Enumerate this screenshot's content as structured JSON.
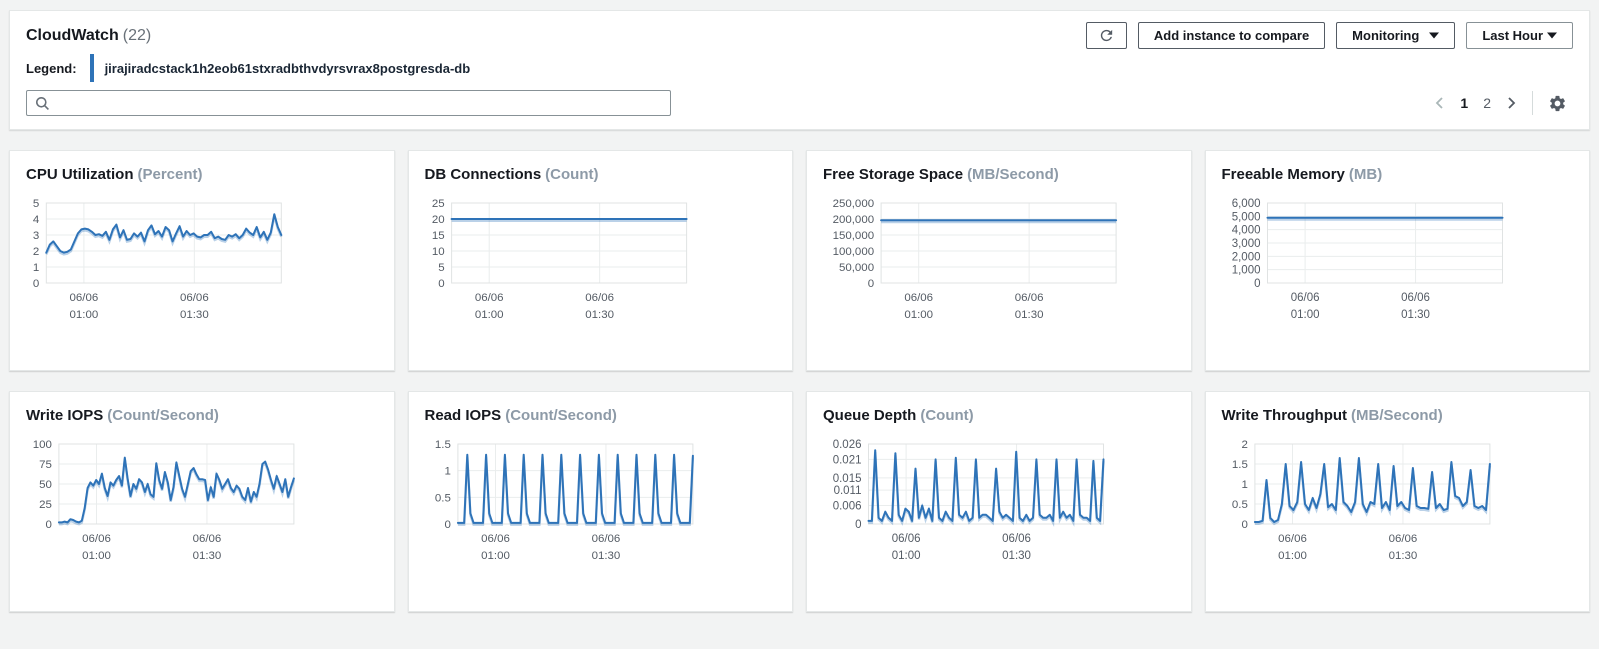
{
  "header": {
    "title": "CloudWatch",
    "count": "(22)",
    "legend_label": "Legend:",
    "legend_value": "jirajiradcstack1h2eob61stxradbthvdyrsvrax8postgresda-db",
    "search": {
      "value": "",
      "placeholder": ""
    },
    "buttons": {
      "refresh_icon": "refresh-icon",
      "add_instance": "Add instance to compare",
      "monitoring": "Monitoring",
      "time_range": "Last Hour"
    },
    "pagination": {
      "pages": [
        "1",
        "2"
      ],
      "current": "1"
    }
  },
  "colors": {
    "line_blue": "#2e73b8",
    "page_bg": "#f2f3f3",
    "grid_line": "#eaeded",
    "plot_border": "#e0e3e3",
    "axis_text": "#545b64",
    "icon_gray": "#545b64"
  },
  "chart_data": [
    {
      "type": "line",
      "title": "CPU Utilization",
      "unit": "(Percent)",
      "ylim": [
        0,
        5
      ],
      "ytick_values": [
        0,
        1,
        2,
        3,
        4,
        5
      ],
      "ytick_labels": [
        "0",
        "1",
        "2",
        "3",
        "4",
        "5"
      ],
      "x_labels": [
        {
          "pos": 0.16,
          "lines": [
            "06/06",
            "01:00"
          ]
        },
        {
          "pos": 0.63,
          "lines": [
            "06/06",
            "01:30"
          ]
        }
      ],
      "values": [
        1.9,
        2.4,
        2.6,
        2.3,
        2.0,
        1.9,
        1.95,
        2.1,
        2.6,
        3.1,
        3.35,
        3.4,
        3.35,
        3.2,
        3.0,
        3.05,
        2.95,
        3.2,
        2.7,
        3.35,
        3.65,
        2.85,
        3.3,
        2.7,
        2.75,
        3.1,
        2.9,
        3.15,
        2.6,
        3.3,
        3.6,
        3.05,
        3.25,
        2.9,
        3.5,
        3.3,
        2.6,
        3.1,
        3.55,
        2.9,
        3.25,
        3.0,
        3.1,
        2.9,
        2.85,
        3.0,
        3.0,
        3.2,
        2.8,
        2.9,
        2.75,
        2.7,
        3.0,
        2.9,
        3.05,
        2.8,
        3.0,
        3.4,
        3.15,
        3.0,
        3.5,
        2.85,
        3.2,
        2.7,
        3.15,
        4.3,
        3.5,
        3.0
      ]
    },
    {
      "type": "line",
      "title": "DB Connections",
      "unit": "(Count)",
      "ylim": [
        0,
        25
      ],
      "ytick_values": [
        0,
        5,
        10,
        15,
        20,
        25
      ],
      "ytick_labels": [
        "0",
        "5",
        "10",
        "15",
        "20",
        "25"
      ],
      "x_labels": [
        {
          "pos": 0.16,
          "lines": [
            "06/06",
            "01:00"
          ]
        },
        {
          "pos": 0.63,
          "lines": [
            "06/06",
            "01:30"
          ]
        }
      ],
      "values": [
        20,
        20,
        20,
        20,
        20,
        20,
        20,
        20,
        20,
        20,
        20,
        20,
        20,
        20,
        20,
        20,
        20,
        20,
        20,
        20,
        20,
        20,
        20,
        20,
        20
      ]
    },
    {
      "type": "line",
      "title": "Free Storage Space",
      "unit": "(MB/Second)",
      "ylim": [
        0,
        250000
      ],
      "ytick_values": [
        0,
        50000,
        100000,
        150000,
        200000,
        250000
      ],
      "ytick_labels": [
        "0",
        "50,000",
        "100,000",
        "150,000",
        "200,000",
        "250,000"
      ],
      "x_labels": [
        {
          "pos": 0.16,
          "lines": [
            "06/06",
            "01:00"
          ]
        },
        {
          "pos": 0.63,
          "lines": [
            "06/06",
            "01:30"
          ]
        }
      ],
      "values": [
        196000,
        196000,
        196000,
        196000,
        196000,
        196000,
        196000,
        196000,
        196000,
        196000,
        196000,
        196000,
        196000,
        196000,
        196000,
        196000,
        196000,
        196000,
        196000,
        196000,
        196000,
        196000,
        196000,
        196000,
        196000
      ]
    },
    {
      "type": "line",
      "title": "Freeable Memory",
      "unit": "(MB)",
      "ylim": [
        0,
        6000
      ],
      "ytick_values": [
        0,
        1000,
        2000,
        3000,
        4000,
        5000,
        6000
      ],
      "ytick_labels": [
        "0",
        "1,000",
        "2,000",
        "3,000",
        "4,000",
        "5,000",
        "6,000"
      ],
      "x_labels": [
        {
          "pos": 0.16,
          "lines": [
            "06/06",
            "01:00"
          ]
        },
        {
          "pos": 0.63,
          "lines": [
            "06/06",
            "01:30"
          ]
        }
      ],
      "values": [
        4890,
        4890,
        4890,
        4890,
        4890,
        4890,
        4890,
        4890,
        4890,
        4890,
        4890,
        4890,
        4890,
        4890,
        4890,
        4890,
        4890,
        4890,
        4890,
        4890,
        4890,
        4890,
        4890,
        4890,
        4890
      ]
    },
    {
      "type": "line",
      "title": "Write IOPS",
      "unit": "(Count/Second)",
      "ylim": [
        0,
        100
      ],
      "ytick_values": [
        0,
        25,
        50,
        75,
        100
      ],
      "ytick_labels": [
        "0",
        "25",
        "50",
        "75",
        "100"
      ],
      "x_labels": [
        {
          "pos": 0.16,
          "lines": [
            "06/06",
            "01:00"
          ]
        },
        {
          "pos": 0.63,
          "lines": [
            "06/06",
            "01:30"
          ]
        }
      ],
      "values": [
        2,
        2,
        3,
        2,
        6,
        5,
        3,
        2,
        4,
        20,
        45,
        52,
        48,
        55,
        50,
        63,
        45,
        35,
        52,
        48,
        55,
        60,
        48,
        83,
        56,
        35,
        50,
        44,
        56,
        52,
        40,
        50,
        37,
        34,
        76,
        55,
        44,
        65,
        52,
        30,
        46,
        77,
        60,
        44,
        34,
        50,
        66,
        70,
        62,
        56,
        56,
        55,
        30,
        46,
        34,
        63,
        55,
        44,
        50,
        56,
        45,
        40,
        48,
        44,
        34,
        30,
        45,
        28,
        40,
        34,
        50,
        75,
        78,
        68,
        55,
        44,
        60,
        50,
        40,
        56,
        34,
        46,
        57
      ]
    },
    {
      "type": "line",
      "title": "Read IOPS",
      "unit": "(Count/Second)",
      "ylim": [
        0,
        1.5
      ],
      "ytick_values": [
        0,
        0.5,
        1,
        1.5
      ],
      "ytick_labels": [
        "0",
        "0.5",
        "1",
        "1.5"
      ],
      "x_labels": [
        {
          "pos": 0.16,
          "lines": [
            "06/06",
            "01:00"
          ]
        },
        {
          "pos": 0.63,
          "lines": [
            "06/06",
            "01:30"
          ]
        }
      ],
      "values": [
        0.02,
        0.02,
        0.02,
        1.3,
        0.2,
        0.02,
        0.02,
        0.02,
        0.02,
        1.3,
        0.2,
        0.02,
        0.02,
        0.02,
        0.02,
        1.3,
        0.2,
        0.02,
        0.02,
        0.02,
        0.02,
        1.3,
        0.2,
        0.02,
        0.02,
        0.02,
        0.02,
        1.3,
        0.2,
        0.02,
        0.02,
        0.02,
        0.02,
        1.3,
        0.2,
        0.02,
        0.02,
        0.02,
        0.02,
        1.3,
        0.2,
        0.02,
        0.02,
        0.02,
        0.02,
        1.3,
        0.2,
        0.02,
        0.02,
        0.02,
        0.02,
        1.3,
        0.2,
        0.02,
        0.02,
        0.02,
        0.02,
        1.3,
        0.2,
        0.02,
        0.02,
        0.02,
        0.02,
        1.3,
        0.2,
        0.02,
        0.02,
        0.02,
        0.02,
        1.3,
        0.2,
        0.02,
        0.02,
        0.02,
        0.02,
        1.28
      ]
    },
    {
      "type": "line",
      "title": "Queue Depth",
      "unit": "(Count)",
      "ylim": [
        0,
        0.026
      ],
      "ytick_values": [
        0,
        0.006,
        0.011,
        0.015,
        0.021,
        0.026
      ],
      "ytick_labels": [
        "0",
        "0.006",
        "0.011",
        "0.015",
        "0.021",
        "0.026"
      ],
      "x_labels": [
        {
          "pos": 0.16,
          "lines": [
            "06/06",
            "01:00"
          ]
        },
        {
          "pos": 0.63,
          "lines": [
            "06/06",
            "01:30"
          ]
        }
      ],
      "values": [
        0.001,
        0.001,
        0.024,
        0.002,
        0.001,
        0.004,
        0.002,
        0.001,
        0.023,
        0.003,
        0.001,
        0.005,
        0.004,
        0.001,
        0.018,
        0.002,
        0.006,
        0.002,
        0.005,
        0.001,
        0.021,
        0.002,
        0.001,
        0.004,
        0.002,
        0.001,
        0.0215,
        0.003,
        0.002,
        0.004,
        0.001,
        0.002,
        0.021,
        0.002,
        0.003,
        0.003,
        0.002,
        0.001,
        0.018,
        0.004,
        0.002,
        0.003,
        0.002,
        0.001,
        0.0235,
        0.002,
        0.001,
        0.003,
        0.001,
        0.002,
        0.021,
        0.003,
        0.002,
        0.002,
        0.003,
        0.001,
        0.021,
        0.002,
        0.004,
        0.002,
        0.003,
        0.001,
        0.021,
        0.003,
        0.002,
        0.002,
        0.001,
        0.0205,
        0.002,
        0.001,
        0.021
      ]
    },
    {
      "type": "line",
      "title": "Write Throughput",
      "unit": "(MB/Second)",
      "ylim": [
        0,
        2
      ],
      "ytick_values": [
        0,
        0.5,
        1,
        1.5,
        2
      ],
      "ytick_labels": [
        "0",
        "0.5",
        "1",
        "1.5",
        "2"
      ],
      "x_labels": [
        {
          "pos": 0.16,
          "lines": [
            "06/06",
            "01:00"
          ]
        },
        {
          "pos": 0.63,
          "lines": [
            "06/06",
            "01:30"
          ]
        }
      ],
      "values": [
        0.05,
        0.05,
        0.08,
        1.1,
        0.15,
        0.05,
        0.1,
        0.5,
        1.5,
        0.45,
        0.35,
        0.55,
        1.55,
        0.5,
        0.35,
        0.65,
        0.4,
        0.75,
        1.5,
        0.42,
        0.5,
        0.35,
        1.65,
        0.55,
        0.45,
        0.3,
        0.55,
        1.65,
        0.5,
        0.3,
        0.55,
        0.5,
        1.5,
        0.4,
        0.55,
        0.35,
        1.45,
        0.45,
        0.55,
        0.4,
        0.35,
        1.4,
        0.45,
        0.4,
        0.4,
        0.38,
        1.3,
        0.4,
        0.5,
        0.35,
        0.38,
        1.55,
        0.7,
        0.65,
        0.45,
        0.55,
        1.35,
        0.45,
        0.4,
        0.45,
        0.35,
        1.5
      ]
    }
  ]
}
